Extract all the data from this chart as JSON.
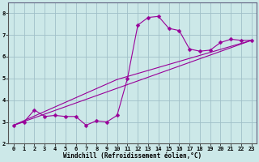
{
  "background_color": "#cce8e8",
  "grid_color": "#a0c0c8",
  "line_color": "#990099",
  "marker": "D",
  "markersize": 2.5,
  "linewidth": 0.8,
  "xlim": [
    -0.5,
    23.5
  ],
  "ylim": [
    2,
    8.5
  ],
  "xlabel": "Windchill (Refroidissement éolien,°C)",
  "xlabel_fontsize": 5.5,
  "tick_fontsize": 5.0,
  "xtick_values": [
    0,
    1,
    2,
    3,
    4,
    5,
    6,
    7,
    8,
    9,
    10,
    11,
    12,
    13,
    14,
    15,
    16,
    17,
    18,
    19,
    20,
    21,
    22,
    23
  ],
  "xtick_labels": [
    "0",
    "1",
    "2",
    "3",
    "4",
    "5",
    "6",
    "7",
    "8",
    "9",
    "10",
    "11",
    "12",
    "13",
    "14",
    "15",
    "16",
    "17",
    "18",
    "19",
    "20",
    "21",
    "22",
    "23"
  ],
  "ytick_values": [
    2,
    3,
    4,
    5,
    6,
    7,
    8
  ],
  "ytick_labels": [
    "2",
    "3",
    "4",
    "5",
    "6",
    "7",
    "8"
  ],
  "series1_x": [
    0,
    1,
    2,
    3,
    4,
    5,
    6,
    7,
    8,
    9,
    10,
    11,
    12,
    13,
    14,
    15,
    16,
    17,
    18,
    19,
    20,
    21,
    22,
    23
  ],
  "series1_y": [
    2.85,
    3.0,
    3.55,
    3.25,
    3.3,
    3.25,
    3.25,
    2.85,
    3.05,
    3.0,
    3.3,
    5.0,
    7.45,
    7.8,
    7.85,
    7.3,
    7.2,
    6.35,
    6.25,
    6.3,
    6.65,
    6.8,
    6.75,
    6.75
  ],
  "series2_x": [
    0,
    23
  ],
  "series2_y": [
    2.85,
    6.75
  ],
  "series3_x": [
    0,
    10,
    23
  ],
  "series3_y": [
    2.85,
    4.95,
    6.75
  ]
}
